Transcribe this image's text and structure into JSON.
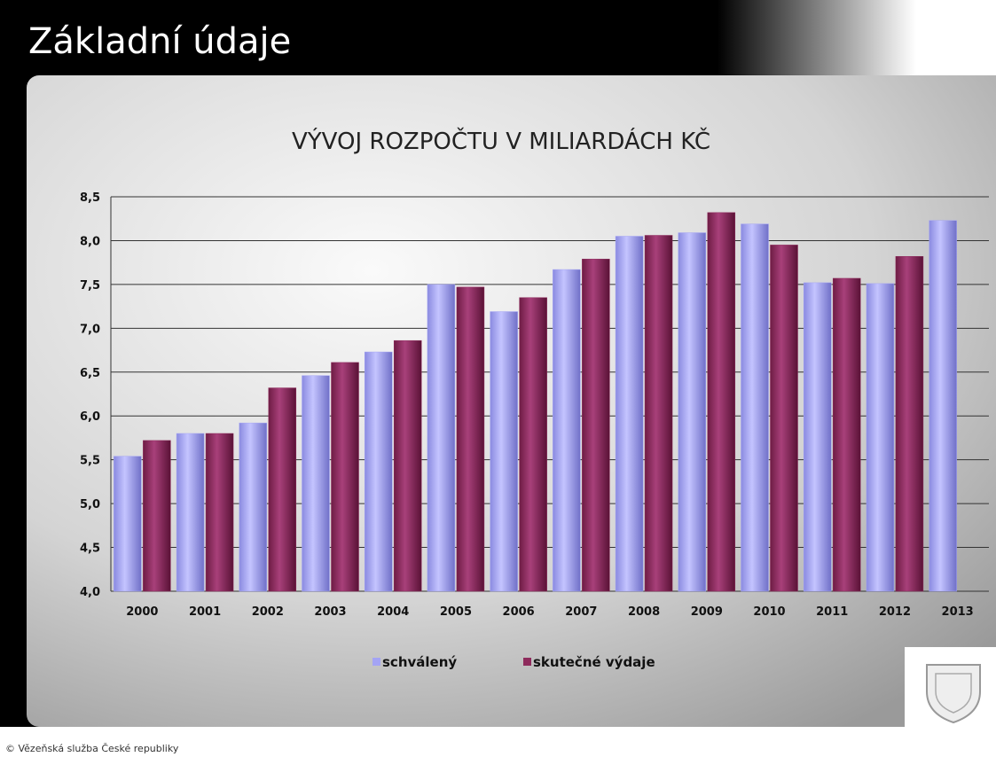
{
  "slide_title": "Základní údaje",
  "footer": "© Vězeňská služba České republiky",
  "chart_data": {
    "type": "bar",
    "title": "VÝVOJ ROZPOČTU V MILIARDÁCH KČ",
    "categories": [
      "2000",
      "2001",
      "2002",
      "2003",
      "2004",
      "2005",
      "2006",
      "2007",
      "2008",
      "2009",
      "2010",
      "2011",
      "2012",
      "2013"
    ],
    "series": [
      {
        "name": "schválený",
        "color": "#a4a4f4",
        "values": [
          5.54,
          5.8,
          5.92,
          6.46,
          6.73,
          7.5,
          7.19,
          7.67,
          8.05,
          8.09,
          8.19,
          7.52,
          7.51,
          8.23
        ]
      },
      {
        "name": "skutečné výdaje",
        "color": "#8e2b5c",
        "values": [
          5.72,
          5.8,
          6.32,
          6.61,
          6.86,
          7.47,
          7.35,
          7.79,
          8.06,
          8.32,
          7.95,
          7.57,
          7.82,
          null
        ]
      }
    ],
    "ylim": [
      4,
      8.5
    ],
    "yticks": [
      {
        "value": 4,
        "label": "4,0"
      },
      {
        "value": 4.5,
        "label": "4,5"
      },
      {
        "value": 5,
        "label": "5,0"
      },
      {
        "value": 5.5,
        "label": "5,5"
      },
      {
        "value": 6,
        "label": "6,0"
      },
      {
        "value": 6.5,
        "label": "6,5"
      },
      {
        "value": 7,
        "label": "7,0"
      },
      {
        "value": 7.5,
        "label": "7,5"
      },
      {
        "value": 8,
        "label": "8,0"
      },
      {
        "value": 8.5,
        "label": "8,5"
      }
    ],
    "grid": true,
    "legend": "bottom"
  }
}
